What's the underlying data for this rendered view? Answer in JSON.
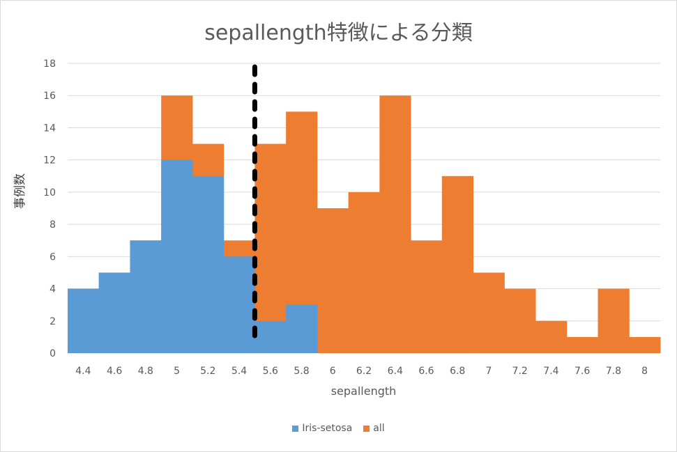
{
  "chart_data": {
    "type": "bar",
    "title": "sepallength特徴による分類",
    "xlabel": "sepallength",
    "ylabel": "事例数",
    "ylim": [
      0,
      18
    ],
    "yticks": [
      "0",
      "2",
      "4",
      "6",
      "8",
      "10",
      "12",
      "14",
      "16",
      "18"
    ],
    "categories": [
      "4.4",
      "4.6",
      "4.8",
      "5",
      "5.2",
      "5.4",
      "5.6",
      "5.8",
      "6",
      "6.2",
      "6.4",
      "6.6",
      "6.8",
      "7",
      "7.2",
      "7.4",
      "7.6",
      "7.8",
      "8"
    ],
    "series": [
      {
        "name": "Iris-setosa",
        "color": "#5b9bd5",
        "values": [
          4,
          5,
          7,
          12,
          11,
          6,
          2,
          3,
          0,
          0,
          0,
          0,
          0,
          0,
          0,
          0,
          0,
          0,
          0
        ]
      },
      {
        "name": "all",
        "color": "#ed7d31",
        "values": [
          4,
          5,
          7,
          16,
          13,
          7,
          13,
          15,
          9,
          10,
          16,
          7,
          11,
          5,
          4,
          2,
          1,
          4,
          1
        ]
      }
    ],
    "threshold_x": 5.5,
    "grid": true,
    "legend_position": "bottom"
  }
}
